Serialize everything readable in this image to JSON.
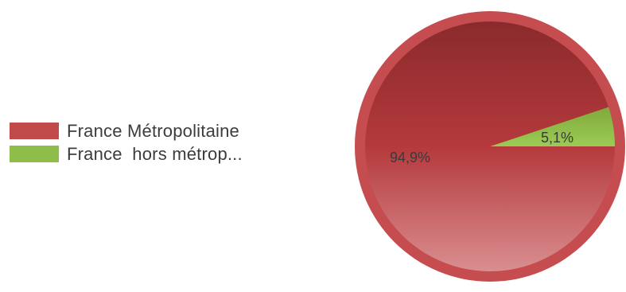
{
  "chart_data": {
    "type": "pie",
    "categories": [
      "France Métropolitaine",
      "France  hors métrop..."
    ],
    "values": [
      94.9,
      5.1
    ],
    "data_labels": [
      "94,9%",
      "5,1%"
    ],
    "colors": [
      "#c14b4b",
      "#8fbd4a"
    ],
    "legend_position": "left",
    "start_angle": "right, slices counter-clockwise"
  }
}
